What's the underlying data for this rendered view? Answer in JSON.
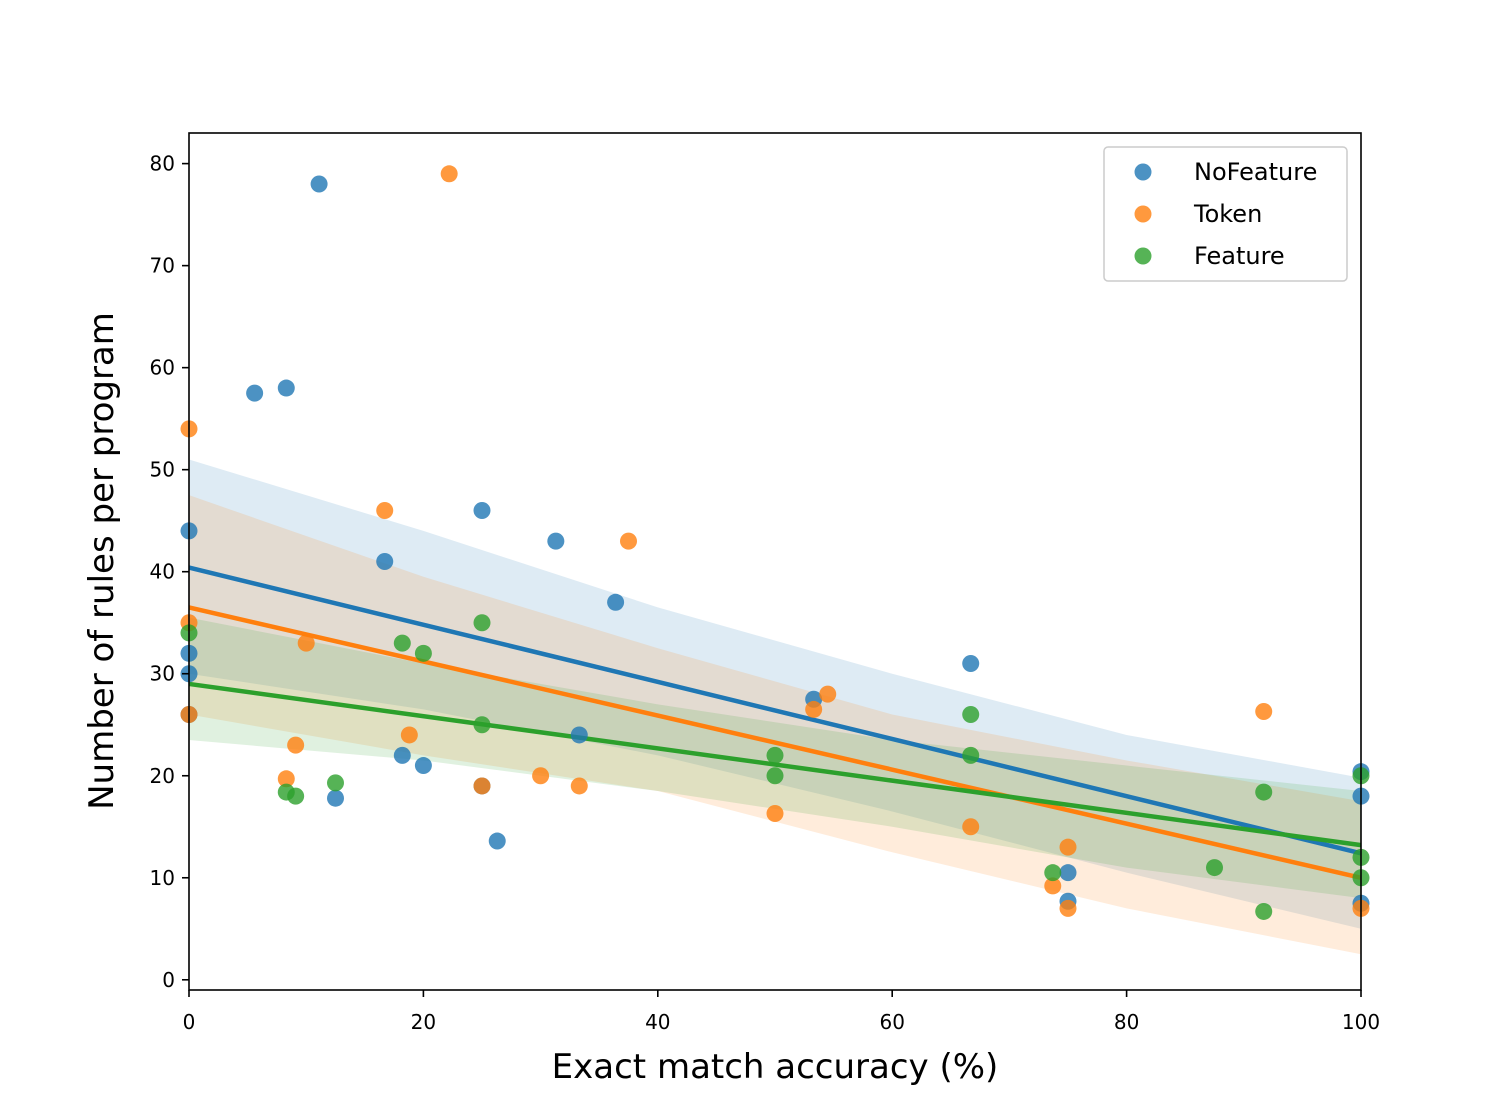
{
  "chart_data": {
    "type": "scatter",
    "title": "",
    "xlabel": "Exact match accuracy (%)",
    "ylabel": "Number of rules per program",
    "xlim": [
      0,
      100
    ],
    "ylim": [
      -1,
      83
    ],
    "xticks": [
      0,
      20,
      40,
      60,
      80,
      100
    ],
    "yticks": [
      0,
      10,
      20,
      30,
      40,
      50,
      60,
      70,
      80
    ],
    "grid": false,
    "legend_position": "top-right",
    "series": [
      {
        "name": "NoFeature",
        "color": "#1f77b4",
        "points": [
          [
            0,
            44
          ],
          [
            0,
            32
          ],
          [
            0,
            30
          ],
          [
            0,
            26
          ],
          [
            5.6,
            57.5
          ],
          [
            8.3,
            58
          ],
          [
            11.1,
            78
          ],
          [
            12.5,
            17.8
          ],
          [
            16.7,
            41
          ],
          [
            18.2,
            22
          ],
          [
            20,
            21
          ],
          [
            25,
            46
          ],
          [
            25,
            19
          ],
          [
            26.3,
            13.6
          ],
          [
            31.3,
            43
          ],
          [
            33.3,
            24
          ],
          [
            36.4,
            37
          ],
          [
            53.3,
            27.5
          ],
          [
            66.7,
            31
          ],
          [
            75,
            10.5
          ],
          [
            75,
            7.7
          ],
          [
            100,
            20.4
          ],
          [
            100,
            18
          ],
          [
            100,
            7.5
          ]
        ],
        "fit": {
          "intercept": 40.4,
          "slope": -0.28
        },
        "ci_upper": [
          [
            0,
            51
          ],
          [
            20,
            44
          ],
          [
            40,
            36.5
          ],
          [
            60,
            30
          ],
          [
            80,
            24
          ],
          [
            100,
            19.8
          ]
        ],
        "ci_lower": [
          [
            0,
            30
          ],
          [
            20,
            26.5
          ],
          [
            40,
            22
          ],
          [
            60,
            16.5
          ],
          [
            80,
            10.5
          ],
          [
            100,
            5
          ]
        ]
      },
      {
        "name": "Token",
        "color": "#ff7f0e",
        "points": [
          [
            0,
            54
          ],
          [
            0,
            35
          ],
          [
            0,
            26
          ],
          [
            8.3,
            19.7
          ],
          [
            9.1,
            23
          ],
          [
            10,
            33
          ],
          [
            16.7,
            46
          ],
          [
            18.8,
            24
          ],
          [
            22.2,
            79
          ],
          [
            25,
            19
          ],
          [
            30,
            20
          ],
          [
            33.3,
            19
          ],
          [
            37.5,
            43
          ],
          [
            50,
            16.3
          ],
          [
            53.3,
            26.5
          ],
          [
            54.5,
            28
          ],
          [
            66.7,
            15
          ],
          [
            73.7,
            9.2
          ],
          [
            75,
            13
          ],
          [
            75,
            7
          ],
          [
            91.7,
            26.3
          ],
          [
            100,
            7
          ]
        ],
        "fit": {
          "intercept": 36.5,
          "slope": -0.265
        },
        "ci_upper": [
          [
            0,
            47.5
          ],
          [
            20,
            39.5
          ],
          [
            40,
            32.5
          ],
          [
            60,
            26
          ],
          [
            80,
            21.5
          ],
          [
            100,
            17.5
          ]
        ],
        "ci_lower": [
          [
            0,
            26
          ],
          [
            20,
            22
          ],
          [
            40,
            18.5
          ],
          [
            60,
            12.5
          ],
          [
            80,
            7
          ],
          [
            100,
            2.5
          ]
        ]
      },
      {
        "name": "Feature",
        "color": "#2ca02c",
        "points": [
          [
            0,
            34
          ],
          [
            8.3,
            18.4
          ],
          [
            9.1,
            18
          ],
          [
            12.5,
            19.3
          ],
          [
            18.2,
            33
          ],
          [
            20,
            32
          ],
          [
            25,
            35
          ],
          [
            25,
            25
          ],
          [
            50,
            22
          ],
          [
            50,
            20
          ],
          [
            66.7,
            26
          ],
          [
            66.7,
            22
          ],
          [
            73.7,
            10.5
          ],
          [
            87.5,
            11
          ],
          [
            91.7,
            18.4
          ],
          [
            91.7,
            6.7
          ],
          [
            100,
            20
          ],
          [
            100,
            12
          ],
          [
            100,
            10
          ]
        ],
        "fit": {
          "intercept": 29,
          "slope": -0.158
        },
        "ci_upper": [
          [
            0,
            35.5
          ],
          [
            20,
            31
          ],
          [
            40,
            27
          ],
          [
            60,
            23.5
          ],
          [
            80,
            21
          ],
          [
            100,
            18.5
          ]
        ],
        "ci_lower": [
          [
            0,
            23.5
          ],
          [
            20,
            21.5
          ],
          [
            40,
            18.5
          ],
          [
            60,
            15
          ],
          [
            80,
            11
          ],
          [
            100,
            8
          ]
        ]
      }
    ]
  }
}
